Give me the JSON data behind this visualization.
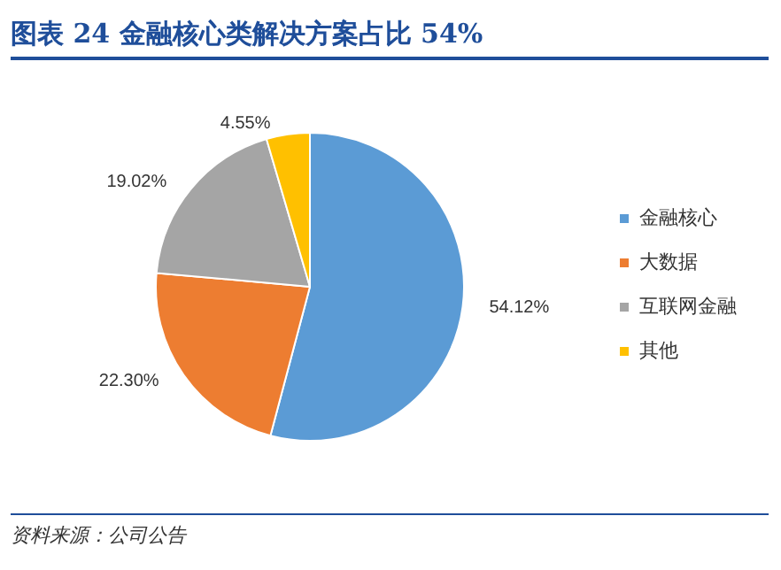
{
  "chart_data": {
    "type": "pie",
    "title": "图表 24   金融核心类解决方案占比 54%",
    "categories": [
      "金融核心",
      "大数据",
      "互联网金融",
      "其他"
    ],
    "values": [
      54.12,
      22.3,
      19.02,
      4.55
    ],
    "colors": [
      "#5b9bd5",
      "#ed7d31",
      "#a5a5a5",
      "#ffc000"
    ],
    "value_labels": [
      "54.12%",
      "22.30%",
      "19.02%",
      "4.55%"
    ],
    "legend": "right",
    "annotations": [
      "资料来源：公司公告"
    ]
  }
}
